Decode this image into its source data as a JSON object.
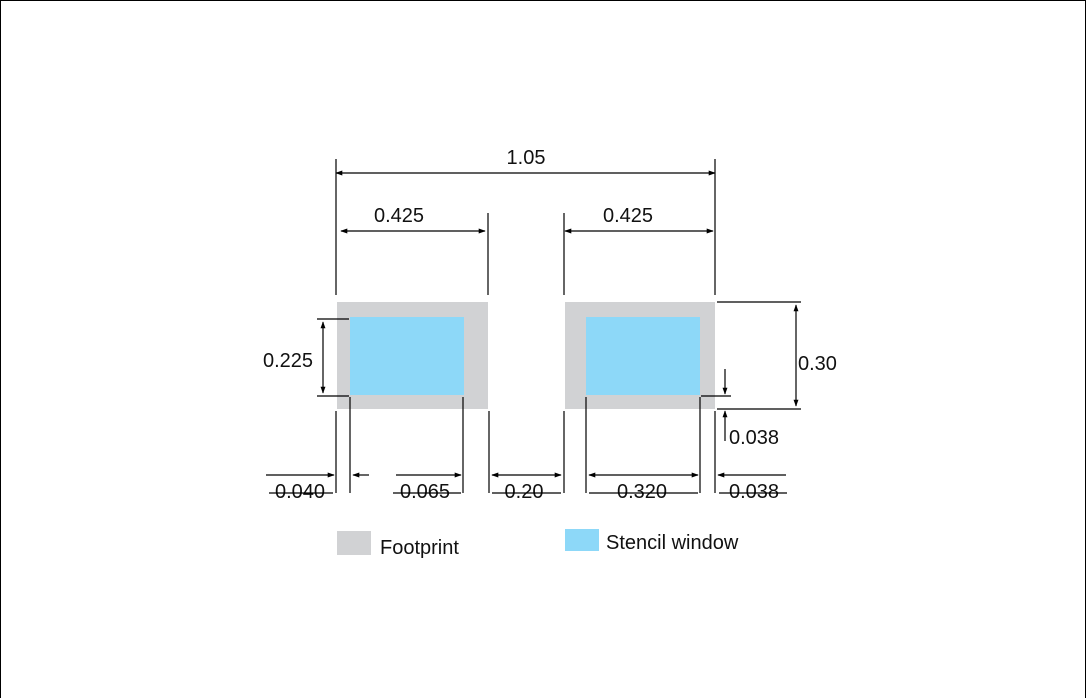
{
  "diagram": {
    "dimensions": {
      "overall_width": "1.05",
      "left_pad_width": "0.425",
      "right_pad_width": "0.425",
      "pad_height": "0.30",
      "stencil_height": "0.225",
      "left_margin": "0.040",
      "inner_margin": "0.065",
      "pad_gap": "0.20",
      "stencil_width": "0.320",
      "right_margin": "0.038",
      "bottom_margin": "0.038"
    },
    "colors": {
      "footprint": "#d1d2d4",
      "stencil": "#8dd8f8",
      "line": "#000000"
    }
  },
  "legend": {
    "footprint_label": "Footprint",
    "stencil_label": "Stencil window"
  }
}
